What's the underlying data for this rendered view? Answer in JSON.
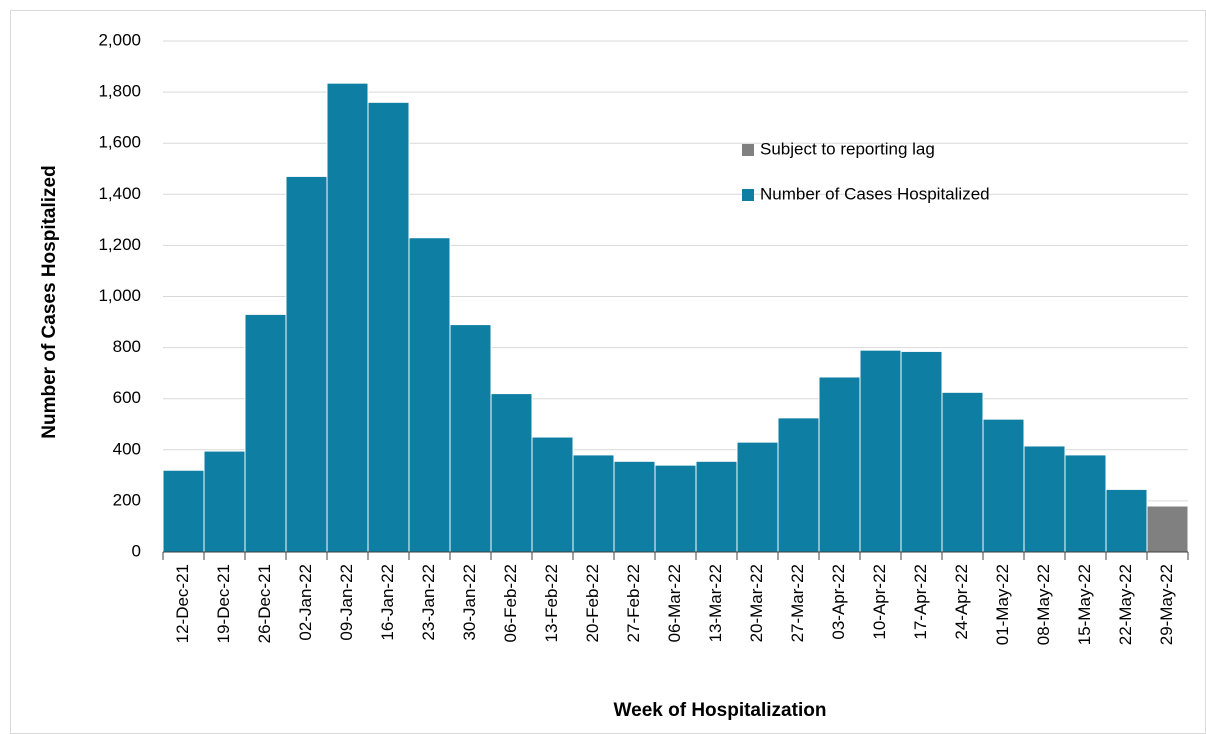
{
  "chart_data": {
    "type": "bar",
    "x_label": "Week of Hospitalization",
    "y_label": "Number of Cases Hospitalized",
    "categories": [
      "12-Dec-21",
      "19-Dec-21",
      "26-Dec-21",
      "02-Jan-22",
      "09-Jan-22",
      "16-Jan-22",
      "23-Jan-22",
      "30-Jan-22",
      "06-Feb-22",
      "13-Feb-22",
      "20-Feb-22",
      "27-Feb-22",
      "06-Mar-22",
      "13-Mar-22",
      "20-Mar-22",
      "27-Mar-22",
      "03-Apr-22",
      "10-Apr-22",
      "17-Apr-22",
      "24-Apr-22",
      "01-May-22",
      "08-May-22",
      "15-May-22",
      "22-May-22",
      "29-May-22"
    ],
    "series": [
      {
        "name": "Subject to reporting lag",
        "color": "#808080",
        "values": [
          null,
          null,
          null,
          null,
          null,
          null,
          null,
          null,
          null,
          null,
          null,
          null,
          null,
          null,
          null,
          null,
          null,
          null,
          null,
          null,
          null,
          null,
          null,
          null,
          180
        ]
      },
      {
        "name": "Number of Cases Hospitalized",
        "color": "#0e7ea3",
        "values": [
          320,
          395,
          930,
          1470,
          1835,
          1760,
          1230,
          890,
          620,
          450,
          380,
          355,
          340,
          355,
          430,
          525,
          685,
          790,
          785,
          625,
          520,
          415,
          380,
          245,
          null
        ]
      }
    ],
    "ylim": [
      0,
      2000
    ],
    "yticks": [
      0,
      200,
      400,
      600,
      800,
      {
        "value": 1000,
        "label": "1,000"
      },
      {
        "value": 1200,
        "label": "1,200"
      },
      {
        "value": 1400,
        "label": "1,400"
      },
      {
        "value": 1600,
        "label": "1,600"
      },
      {
        "value": 1800,
        "label": "1,800"
      },
      {
        "value": 2000,
        "label": "2,000"
      }
    ],
    "grid": true,
    "legend": "upper right"
  }
}
